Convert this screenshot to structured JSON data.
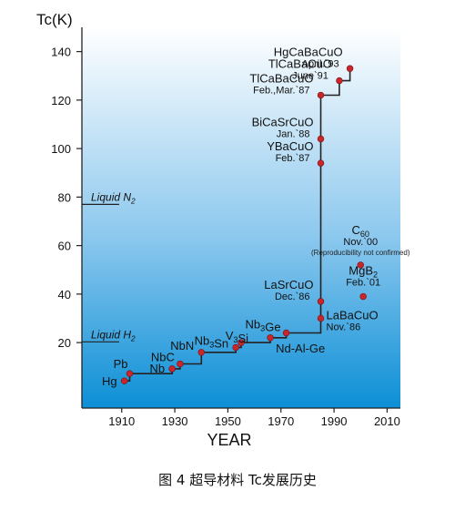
{
  "chart_data": {
    "type": "line",
    "title": "",
    "ylabel": "Tc(K)",
    "xlabel": "YEAR",
    "xlim": [
      1895,
      2015
    ],
    "ylim": [
      -7,
      150
    ],
    "x_ticks": [
      1910,
      1930,
      1950,
      1970,
      1990,
      2010
    ],
    "y_ticks": [
      20,
      40,
      60,
      80,
      100,
      120,
      140
    ],
    "colors": {
      "bg_top": "#ffffff",
      "bg_bottom": "#0c8fd6",
      "marker": "#c8262b",
      "line": "#222222"
    },
    "step_line": [
      [
        1911,
        4.2
      ],
      [
        1913,
        4.2
      ],
      [
        1913,
        7.2
      ],
      [
        1929,
        7.2
      ],
      [
        1929,
        9.2
      ],
      [
        1932,
        9.2
      ],
      [
        1932,
        11.2
      ],
      [
        1940,
        11.2
      ],
      [
        1940,
        16
      ],
      [
        1953,
        16
      ],
      [
        1953,
        18
      ],
      [
        1955,
        18
      ],
      [
        1955,
        20
      ],
      [
        1966,
        20
      ],
      [
        1966,
        22
      ],
      [
        1972,
        22
      ],
      [
        1972,
        24
      ],
      [
        1985,
        24
      ],
      [
        1985,
        94
      ],
      [
        1985,
        122
      ],
      [
        1992,
        122
      ],
      [
        1992,
        128
      ],
      [
        1996,
        128
      ],
      [
        1996,
        133
      ]
    ],
    "points": [
      {
        "label": "Hg",
        "x": 1911,
        "y": 4.2,
        "side": "left"
      },
      {
        "label": "Pb",
        "x": 1913,
        "y": 7.2,
        "side": "left"
      },
      {
        "label": "Nb",
        "x": 1929,
        "y": 9.2,
        "side": "left"
      },
      {
        "label": "NbC",
        "x": 1932,
        "y": 11.2,
        "side": "left"
      },
      {
        "label": "NbN",
        "x": 1940,
        "y": 16,
        "side": "left"
      },
      {
        "label": "Nb3Sn",
        "x": 1953,
        "y": 18,
        "side": "left"
      },
      {
        "label": "V3Si",
        "x": 1955,
        "y": 20,
        "side": "left"
      },
      {
        "label": "Nd-Al-Ge",
        "x": 1966,
        "y": 22,
        "side": "right"
      },
      {
        "label": "Nb3Ge",
        "x": 1972,
        "y": 24,
        "side": "left"
      },
      {
        "label": "LaBaCuO",
        "x": 1985,
        "y": 30,
        "side": "right",
        "date": "Nov.`86"
      },
      {
        "label": "LaSrCuO",
        "x": 1985,
        "y": 37,
        "side": "left",
        "date": "Dec.`86"
      },
      {
        "label": "YBaCuO",
        "x": 1985,
        "y": 94,
        "side": "left",
        "date": "Feb.`87"
      },
      {
        "label": "BiCaSrCuO",
        "x": 1985,
        "y": 104,
        "side": "left",
        "date": "Jan.`88"
      },
      {
        "label": "TlCaBaCuO",
        "x": 1985,
        "y": 122,
        "side": "left",
        "date": "Feb.,Mar.`87"
      },
      {
        "label": "TlCaBaCuO",
        "x": 1992,
        "y": 128,
        "side": "left",
        "date": "June`91"
      },
      {
        "label": "HgCaBaCuO",
        "x": 1996,
        "y": 133,
        "side": "left",
        "date": "April.`93"
      },
      {
        "label": "MgB2",
        "x": 2001,
        "y": 39,
        "side": "above",
        "date": "Feb.`01"
      },
      {
        "label": "C60",
        "x": 2000,
        "y": 52,
        "side": "above",
        "date": "Nov.`00",
        "note": "(Reproducibility not confirmed)"
      }
    ],
    "reference_lines": [
      {
        "label": "Liquid N2",
        "y": 77
      },
      {
        "label": "Liquid H2",
        "y": 20.3
      }
    ]
  },
  "caption": "图 4  超导材料 Tc发展历史"
}
